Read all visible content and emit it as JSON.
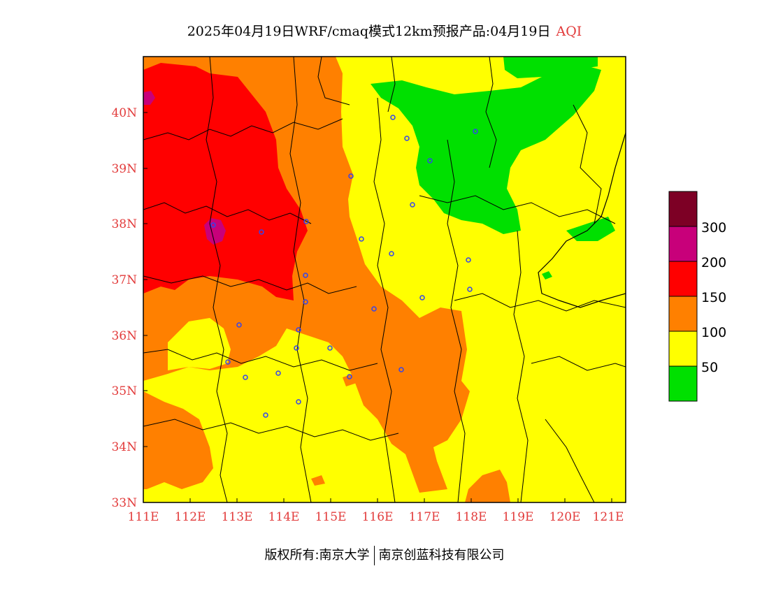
{
  "title": {
    "main": "2025年04月19日WRF/cmaq模式12km预报产品:04月19日",
    "variable": "AQI"
  },
  "axis": {
    "lon_labels": [
      "111E",
      "112E",
      "113E",
      "114E",
      "115E",
      "116E",
      "117E",
      "118E",
      "119E",
      "120E",
      "121E"
    ],
    "lat_labels": [
      "33N",
      "34N",
      "35N",
      "36N",
      "37N",
      "38N",
      "39N",
      "40N"
    ],
    "lon_range": [
      111,
      121.4
    ],
    "lat_range": [
      33,
      41
    ],
    "label_color": "#e23b3b"
  },
  "legend": {
    "bins": [
      {
        "color": "#7d0025"
      },
      {
        "color": "#c8007a"
      },
      {
        "color": "#ff0000"
      },
      {
        "color": "#ff8000"
      },
      {
        "color": "#ffff00"
      },
      {
        "color": "#00e000"
      }
    ],
    "labels": [
      "300",
      "200",
      "150",
      "100",
      "50"
    ]
  },
  "colors": {
    "good": "#00e000",
    "moderate": "#ffff00",
    "sensitive": "#ff8000",
    "unhealthy": "#ff0000",
    "very_unhealthy": "#c8007a",
    "hazardous": "#7d0025",
    "station": "#3344ee"
  },
  "copyright": {
    "left": "版权所有:南京大学",
    "right": "南京创蓝科技有限公司"
  }
}
